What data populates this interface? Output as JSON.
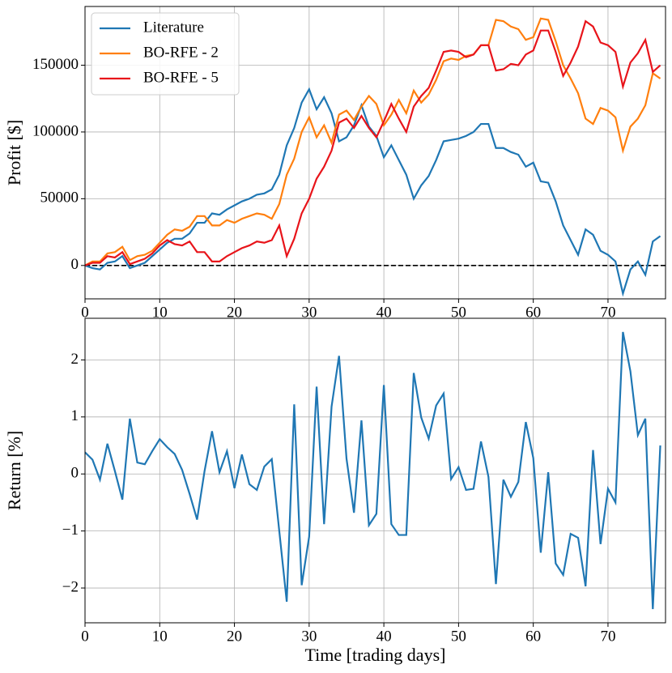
{
  "chart_data": [
    {
      "type": "line",
      "ylabel": "Profit [$]",
      "x": [
        0,
        1,
        2,
        3,
        4,
        5,
        6,
        7,
        8,
        9,
        10,
        11,
        12,
        13,
        14,
        15,
        16,
        17,
        18,
        19,
        20,
        21,
        22,
        23,
        24,
        25,
        26,
        27,
        28,
        29,
        30,
        31,
        32,
        33,
        34,
        35,
        36,
        37,
        38,
        39,
        40,
        41,
        42,
        43,
        44,
        45,
        46,
        47,
        48,
        49,
        50,
        51,
        52,
        53,
        54,
        55,
        56,
        57,
        58,
        59,
        60,
        61,
        62,
        63,
        64,
        65,
        66,
        67,
        68,
        69,
        70,
        71,
        72,
        73,
        74,
        75,
        76,
        77
      ],
      "xlim": [
        0,
        77.7
      ],
      "xticks": [
        0,
        10,
        20,
        30,
        40,
        50,
        60,
        70
      ],
      "ylim": [
        -25000,
        194000
      ],
      "yticks": [
        0,
        50000,
        100000,
        150000
      ],
      "grid": true,
      "legend": "upper left",
      "reference_line": 0,
      "series": [
        {
          "name": "Literature",
          "color": "#1f77b4",
          "values": [
            0,
            -2000,
            -3000,
            2000,
            3000,
            7000,
            -2000,
            0,
            2000,
            7000,
            12000,
            17000,
            20000,
            20000,
            24000,
            32000,
            32000,
            39000,
            38000,
            42000,
            45000,
            48000,
            50000,
            53000,
            54000,
            57000,
            68000,
            90000,
            103000,
            122000,
            132000,
            117000,
            126000,
            114000,
            93000,
            96000,
            105000,
            120000,
            104000,
            97000,
            81000,
            90000,
            79000,
            68000,
            50000,
            60000,
            67000,
            79000,
            93000,
            94000,
            95000,
            97000,
            100000,
            106000,
            106000,
            88000,
            88000,
            85000,
            83000,
            74000,
            77000,
            63000,
            62000,
            48000,
            30000,
            19000,
            8000,
            27000,
            23000,
            11000,
            8000,
            3000,
            -21000,
            -3000,
            3000,
            -7000,
            18000,
            22000
          ]
        },
        {
          "name": "BO-RFE - 2",
          "color": "#ff7f0e",
          "values": [
            0,
            3000,
            3000,
            9000,
            10000,
            14000,
            4000,
            7000,
            8000,
            11000,
            17000,
            23000,
            27000,
            26000,
            29000,
            37000,
            37000,
            30000,
            30000,
            34000,
            32000,
            35000,
            37000,
            39000,
            38000,
            35000,
            46000,
            68000,
            80000,
            100000,
            111000,
            96000,
            105000,
            92000,
            113000,
            116000,
            109000,
            119000,
            127000,
            121000,
            105000,
            113000,
            124000,
            114000,
            131000,
            122000,
            128000,
            139000,
            153000,
            155000,
            154000,
            157000,
            158000,
            165000,
            165000,
            184000,
            183000,
            179000,
            177000,
            169000,
            171000,
            185000,
            184000,
            168000,
            150000,
            140000,
            129000,
            110000,
            106000,
            118000,
            116000,
            111000,
            86000,
            104000,
            110000,
            120000,
            144000,
            140000
          ]
        },
        {
          "name": "BO-RFE - 5",
          "color": "#e8141a",
          "values": [
            0,
            2000,
            2000,
            7000,
            6000,
            10000,
            1000,
            3000,
            5000,
            9000,
            15000,
            19000,
            16000,
            15000,
            18000,
            10000,
            10000,
            3000,
            3000,
            7000,
            10000,
            13000,
            15000,
            18000,
            17000,
            19000,
            30000,
            7000,
            20000,
            39000,
            50000,
            65000,
            74000,
            86000,
            107000,
            110000,
            103000,
            112000,
            103000,
            96000,
            108000,
            121000,
            110000,
            100000,
            119000,
            127000,
            133000,
            146000,
            160000,
            161000,
            160000,
            156000,
            158000,
            165000,
            165000,
            146000,
            147000,
            151000,
            150000,
            158000,
            161000,
            176000,
            176000,
            160000,
            142000,
            152000,
            164000,
            183000,
            179000,
            167000,
            165000,
            160000,
            134000,
            152000,
            159000,
            169000,
            145000,
            150000
          ]
        }
      ]
    },
    {
      "type": "line",
      "ylabel": "Return [%]",
      "xlabel": "Time [trading days]",
      "x": [
        0,
        1,
        2,
        3,
        4,
        5,
        6,
        7,
        8,
        9,
        10,
        11,
        12,
        13,
        14,
        15,
        16,
        17,
        18,
        19,
        20,
        21,
        22,
        23,
        24,
        25,
        26,
        27,
        28,
        29,
        30,
        31,
        32,
        33,
        34,
        35,
        36,
        37,
        38,
        39,
        40,
        41,
        42,
        43,
        44,
        45,
        46,
        47,
        48,
        49,
        50,
        51,
        52,
        53,
        54,
        55,
        56,
        57,
        58,
        59,
        60,
        61,
        62,
        63,
        64,
        65,
        66,
        67,
        68,
        69,
        70,
        71,
        72,
        73,
        74,
        75,
        76,
        77
      ],
      "xlim": [
        0,
        77.7
      ],
      "xticks": [
        0,
        10,
        20,
        30,
        40,
        50,
        60,
        70
      ],
      "ylim": [
        -2.61,
        2.73
      ],
      "yticks": [
        {
          "value": -2,
          "label": "−2"
        },
        {
          "value": -1,
          "label": "−1"
        },
        0,
        1,
        2
      ],
      "grid": true,
      "series": [
        {
          "color": "#1f77b4",
          "values": [
            0.38,
            0.25,
            -0.1,
            0.53,
            0.05,
            -0.45,
            0.97,
            0.2,
            0.17,
            0.4,
            0.61,
            0.47,
            0.35,
            0.07,
            -0.35,
            -0.8,
            0.05,
            0.75,
            0.03,
            0.4,
            -0.25,
            0.34,
            -0.18,
            -0.28,
            0.13,
            0.26,
            -1.0,
            -2.24,
            1.22,
            -1.95,
            -1.1,
            1.53,
            -0.88,
            1.18,
            2.07,
            0.27,
            -0.68,
            0.94,
            -0.9,
            -0.7,
            1.56,
            -0.88,
            -1.07,
            -1.07,
            1.77,
            0.99,
            0.62,
            1.2,
            1.41,
            -0.09,
            0.12,
            -0.28,
            -0.26,
            0.57,
            -0.05,
            -1.93,
            -0.1,
            -0.4,
            -0.14,
            0.91,
            0.28,
            -1.38,
            0.03,
            -1.57,
            -1.77,
            -1.05,
            -1.12,
            -1.97,
            0.42,
            -1.23,
            -0.26,
            -0.5,
            2.49,
            1.8,
            0.68,
            0.97,
            -2.37,
            0.5
          ]
        }
      ]
    }
  ]
}
